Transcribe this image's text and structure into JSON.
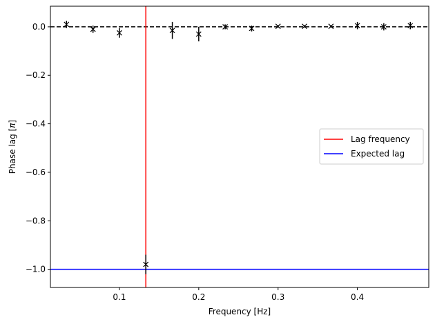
{
  "chart_data": {
    "type": "scatter",
    "xlabel": "Frequency [Hz]",
    "ylabel": "Phase lag [π]",
    "ylabel_prefix": "Phase lag [",
    "ylabel_symbol": "π",
    "ylabel_suffix": "]",
    "xlim": [
      0.013,
      0.49
    ],
    "ylim": [
      -1.075,
      0.085
    ],
    "xticks": [
      0.1,
      0.2,
      0.3,
      0.4
    ],
    "xtick_labels": [
      "0.1",
      "0.2",
      "0.3",
      "0.4"
    ],
    "yticks": [
      0.0,
      -0.2,
      -0.4,
      -0.6,
      -0.8,
      -1.0
    ],
    "ytick_labels": [
      "0.0",
      "−0.2",
      "−0.4",
      "−0.6",
      "−0.8",
      "−1.0"
    ],
    "grid": false,
    "legend_position": "center-right",
    "series": [
      {
        "marker": "x",
        "color": "#000000",
        "points": [
          {
            "x": 0.0333,
            "y": 0.01,
            "err": 0.015
          },
          {
            "x": 0.0667,
            "y": -0.01,
            "err": 0.015
          },
          {
            "x": 0.1,
            "y": -0.025,
            "err": 0.02
          },
          {
            "x": 0.1333,
            "y": -0.98,
            "err": 0.04
          },
          {
            "x": 0.1667,
            "y": -0.015,
            "err": 0.035
          },
          {
            "x": 0.2,
            "y": -0.03,
            "err": 0.03
          },
          {
            "x": 0.2333,
            "y": 0.0,
            "err": 0.01
          },
          {
            "x": 0.2667,
            "y": -0.007,
            "err": 0.012
          },
          {
            "x": 0.3,
            "y": 0.002,
            "err": 0.005
          },
          {
            "x": 0.3333,
            "y": 0.002,
            "err": 0.005
          },
          {
            "x": 0.3667,
            "y": 0.002,
            "err": 0.005
          },
          {
            "x": 0.4,
            "y": 0.005,
            "err": 0.015
          },
          {
            "x": 0.4333,
            "y": 0.0,
            "err": 0.015
          },
          {
            "x": 0.4667,
            "y": 0.005,
            "err": 0.015
          }
        ]
      }
    ],
    "reference_lines": [
      {
        "orientation": "horizontal",
        "value": 0.0,
        "color": "#000000",
        "style": "dashed"
      },
      {
        "orientation": "vertical",
        "value": 0.1333,
        "color": "#ff0000",
        "style": "solid",
        "name": "Lag frequency"
      },
      {
        "orientation": "horizontal",
        "value": -1.0,
        "color": "#0000ff",
        "style": "solid",
        "name": "Expected lag"
      }
    ],
    "legend": [
      {
        "label": "Lag frequency",
        "color": "#ff0000"
      },
      {
        "label": "Expected lag",
        "color": "#0000ff"
      }
    ]
  }
}
